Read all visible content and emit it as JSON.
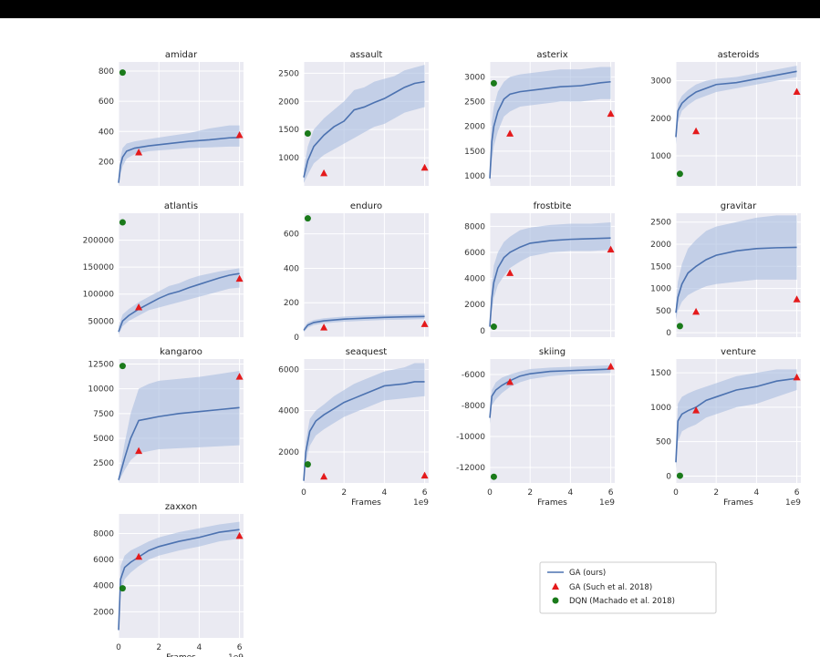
{
  "colors": {
    "ga_ours": "#4c72b0",
    "ga_band": "#a8bde0",
    "ga_such": "#e41a1c",
    "dqn": "#1a7a1a",
    "panel_bg": "#eaeaf2",
    "grid": "#ffffff"
  },
  "legend": {
    "placement": "bottom-right",
    "entries": [
      "GA (ours)",
      "GA (Such et al. 2018)",
      "DQN (Machado et al. 2018)"
    ]
  },
  "shared_xlabel": "Frames",
  "x_exponent_label": "1e9",
  "x_ticks": [
    0,
    2,
    4,
    6
  ],
  "chart_data": [
    {
      "type": "line",
      "title": "amidar",
      "xlim": [
        0,
        6.2
      ],
      "ylim": [
        40,
        860
      ],
      "yticks": [
        200,
        400,
        600,
        800
      ],
      "show_xticks": false,
      "x": [
        0,
        0.1,
        0.2,
        0.4,
        0.8,
        1.5,
        2.5,
        3.5,
        4.5,
        5.5,
        6
      ],
      "ga_ours": [
        60,
        180,
        230,
        270,
        290,
        305,
        320,
        335,
        345,
        358,
        360
      ],
      "band_low": [
        40,
        120,
        170,
        220,
        250,
        270,
        280,
        290,
        295,
        300,
        300
      ],
      "band_high": [
        90,
        230,
        290,
        320,
        335,
        350,
        370,
        390,
        420,
        440,
        440
      ],
      "ga_such": [
        [
          1,
          260
        ],
        [
          6,
          375
        ]
      ],
      "dqn": [
        [
          0.2,
          790
        ]
      ]
    },
    {
      "type": "line",
      "title": "assault",
      "xlim": [
        0,
        6.2
      ],
      "ylim": [
        500,
        2700
      ],
      "yticks": [
        1000,
        1500,
        2000,
        2500
      ],
      "show_xticks": false,
      "x": [
        0,
        0.2,
        0.5,
        1,
        1.5,
        2,
        2.5,
        3,
        3.5,
        4,
        4.5,
        5,
        5.5,
        6
      ],
      "ga_ours": [
        650,
        950,
        1200,
        1400,
        1550,
        1650,
        1850,
        1900,
        1980,
        2050,
        2150,
        2250,
        2320,
        2350
      ],
      "band_low": [
        550,
        700,
        900,
        1050,
        1150,
        1250,
        1350,
        1450,
        1550,
        1600,
        1700,
        1800,
        1850,
        1900
      ],
      "band_high": [
        800,
        1200,
        1500,
        1700,
        1850,
        2000,
        2200,
        2250,
        2350,
        2400,
        2450,
        2550,
        2600,
        2650
      ],
      "ga_such": [
        [
          1,
          720
        ],
        [
          6,
          820
        ]
      ],
      "dqn": [
        [
          0.2,
          1430
        ]
      ]
    },
    {
      "type": "line",
      "title": "asterix",
      "xlim": [
        0,
        6.2
      ],
      "ylim": [
        800,
        3300
      ],
      "yticks": [
        1000,
        1500,
        2000,
        2500,
        3000
      ],
      "show_xticks": false,
      "x": [
        0,
        0.1,
        0.2,
        0.4,
        0.7,
        1,
        1.5,
        2.5,
        3.5,
        4.5,
        5.5,
        6
      ],
      "ga_ours": [
        950,
        1700,
        2000,
        2300,
        2550,
        2650,
        2700,
        2750,
        2800,
        2820,
        2880,
        2900
      ],
      "band_low": [
        850,
        1300,
        1600,
        1900,
        2200,
        2300,
        2400,
        2450,
        2500,
        2500,
        2550,
        2550
      ],
      "band_high": [
        1100,
        2100,
        2400,
        2700,
        2900,
        3000,
        3050,
        3100,
        3150,
        3150,
        3200,
        3200
      ],
      "ga_such": [
        [
          1,
          1850
        ],
        [
          6,
          2250
        ]
      ],
      "dqn": [
        [
          0.2,
          2870
        ]
      ]
    },
    {
      "type": "line",
      "title": "asteroids",
      "xlim": [
        0,
        6.2
      ],
      "ylim": [
        200,
        3500
      ],
      "yticks": [
        1000,
        2000,
        3000
      ],
      "show_xticks": false,
      "x": [
        0,
        0.1,
        0.3,
        0.6,
        1,
        1.5,
        2,
        3,
        4,
        5,
        6
      ],
      "ga_ours": [
        1500,
        2200,
        2400,
        2550,
        2700,
        2800,
        2900,
        2950,
        3050,
        3150,
        3250
      ],
      "band_low": [
        1300,
        1900,
        2200,
        2350,
        2500,
        2600,
        2700,
        2800,
        2900,
        3000,
        3100
      ],
      "band_high": [
        1700,
        2400,
        2600,
        2750,
        2900,
        3000,
        3050,
        3100,
        3200,
        3300,
        3400
      ],
      "ga_such": [
        [
          1,
          1650
        ],
        [
          6,
          2700
        ]
      ],
      "dqn": [
        [
          0.2,
          520
        ]
      ]
    },
    {
      "type": "line",
      "title": "atlantis",
      "xlim": [
        0,
        6.2
      ],
      "ylim": [
        20000,
        250000
      ],
      "yticks": [
        50000,
        100000,
        150000,
        200000
      ],
      "show_xticks": false,
      "x": [
        0,
        0.2,
        0.5,
        1,
        1.5,
        2,
        2.5,
        3,
        3.5,
        4,
        4.5,
        5,
        5.5,
        6
      ],
      "ga_ours": [
        30000,
        50000,
        60000,
        72000,
        82000,
        92000,
        100000,
        105000,
        112000,
        118000,
        124000,
        130000,
        135000,
        138000
      ],
      "band_low": [
        25000,
        40000,
        50000,
        60000,
        70000,
        75000,
        80000,
        85000,
        90000,
        95000,
        100000,
        105000,
        110000,
        112000
      ],
      "band_high": [
        40000,
        62000,
        72000,
        85000,
        95000,
        105000,
        115000,
        120000,
        128000,
        134000,
        138000,
        142000,
        145000,
        148000
      ],
      "ga_such": [
        [
          1,
          75000
        ],
        [
          6,
          128000
        ]
      ],
      "dqn": [
        [
          0.2,
          233000
        ]
      ]
    },
    {
      "type": "line",
      "title": "enduro",
      "xlim": [
        0,
        6.2
      ],
      "ylim": [
        0,
        720
      ],
      "yticks": [
        0,
        200,
        400,
        600
      ],
      "show_xticks": false,
      "x": [
        0,
        0.2,
        0.5,
        1,
        2,
        3,
        4,
        5,
        6
      ],
      "ga_ours": [
        40,
        70,
        85,
        95,
        105,
        110,
        115,
        118,
        120
      ],
      "band_low": [
        30,
        55,
        70,
        80,
        90,
        95,
        100,
        102,
        105
      ],
      "band_high": [
        55,
        85,
        100,
        110,
        120,
        125,
        130,
        132,
        135
      ],
      "ga_such": [
        [
          1,
          55
        ],
        [
          6,
          75
        ]
      ],
      "dqn": [
        [
          0.2,
          690
        ]
      ]
    },
    {
      "type": "line",
      "title": "frostbite",
      "xlim": [
        0,
        6.2
      ],
      "ylim": [
        -500,
        9000
      ],
      "yticks": [
        0,
        2000,
        4000,
        6000,
        8000
      ],
      "show_xticks": false,
      "x": [
        0,
        0.1,
        0.2,
        0.4,
        0.7,
        1,
        1.5,
        2,
        3,
        4,
        5,
        6
      ],
      "ga_ours": [
        300,
        2500,
        3700,
        4800,
        5600,
        6000,
        6400,
        6700,
        6900,
        7000,
        7050,
        7100
      ],
      "band_low": [
        200,
        1500,
        2500,
        3500,
        4200,
        4800,
        5300,
        5700,
        6000,
        6100,
        6100,
        6200
      ],
      "band_high": [
        500,
        3500,
        5000,
        6000,
        6800,
        7200,
        7700,
        7900,
        8100,
        8200,
        8200,
        8300
      ],
      "ga_such": [
        [
          1,
          4400
        ],
        [
          6,
          6200
        ]
      ],
      "dqn": [
        [
          0.2,
          300
        ]
      ]
    },
    {
      "type": "line",
      "title": "gravitar",
      "xlim": [
        0,
        6.2
      ],
      "ylim": [
        -100,
        2700
      ],
      "yticks": [
        0,
        500,
        1000,
        1500,
        2000,
        2500
      ],
      "show_xticks": false,
      "x": [
        0,
        0.1,
        0.3,
        0.6,
        1,
        1.5,
        2,
        3,
        4,
        5,
        6
      ],
      "ga_ours": [
        450,
        800,
        1100,
        1350,
        1500,
        1650,
        1750,
        1850,
        1900,
        1920,
        1930
      ],
      "band_low": [
        300,
        500,
        700,
        850,
        950,
        1050,
        1100,
        1150,
        1200,
        1200,
        1200
      ],
      "band_high": [
        650,
        1150,
        1550,
        1900,
        2100,
        2300,
        2400,
        2500,
        2600,
        2650,
        2650
      ],
      "ga_such": [
        [
          1,
          470
        ],
        [
          6,
          750
        ]
      ],
      "dqn": [
        [
          0.2,
          150
        ]
      ]
    },
    {
      "type": "line",
      "title": "kangaroo",
      "xlim": [
        0,
        6.2
      ],
      "ylim": [
        500,
        13000
      ],
      "yticks": [
        2500,
        5000,
        7500,
        10000,
        12500
      ],
      "show_xticks": false,
      "x": [
        0,
        0.3,
        0.6,
        1,
        1.5,
        2,
        3,
        4,
        5,
        6
      ],
      "ga_ours": [
        800,
        3000,
        5000,
        6800,
        7000,
        7200,
        7500,
        7700,
        7900,
        8100
      ],
      "band_low": [
        600,
        1800,
        2800,
        3500,
        3700,
        3900,
        4000,
        4100,
        4200,
        4300
      ],
      "band_high": [
        1000,
        4500,
        7500,
        10000,
        10500,
        10800,
        11000,
        11200,
        11500,
        11800
      ],
      "ga_such": [
        [
          1,
          3700
        ],
        [
          6,
          11200
        ]
      ],
      "dqn": [
        [
          0.2,
          12300
        ]
      ]
    },
    {
      "type": "line",
      "title": "seaquest",
      "xlim": [
        0,
        6.2
      ],
      "ylim": [
        500,
        6500
      ],
      "yticks": [
        2000,
        4000,
        6000
      ],
      "show_xticks": true,
      "x": [
        0,
        0.1,
        0.3,
        0.6,
        1,
        1.5,
        2,
        2.5,
        3,
        3.5,
        4,
        4.5,
        5,
        5.5,
        6
      ],
      "ga_ours": [
        600,
        2000,
        3000,
        3500,
        3800,
        4100,
        4400,
        4600,
        4800,
        5000,
        5200,
        5250,
        5300,
        5400,
        5400
      ],
      "band_low": [
        500,
        1500,
        2300,
        2800,
        3100,
        3400,
        3700,
        3900,
        4100,
        4300,
        4500,
        4550,
        4600,
        4650,
        4700
      ],
      "band_high": [
        700,
        2500,
        3600,
        4000,
        4300,
        4700,
        5000,
        5300,
        5500,
        5700,
        5900,
        6000,
        6100,
        6300,
        6300
      ],
      "ga_such": [
        [
          1,
          800
        ],
        [
          6,
          850
        ]
      ],
      "dqn": [
        [
          0.2,
          1400
        ]
      ]
    },
    {
      "type": "line",
      "title": "skiing",
      "xlim": [
        0,
        6.2
      ],
      "ylim": [
        -13000,
        -5000
      ],
      "yticks": [
        -12000,
        -10000,
        -8000,
        -6000
      ],
      "show_xticks": true,
      "x": [
        0,
        0.1,
        0.3,
        0.6,
        1,
        1.5,
        2,
        3,
        4,
        5,
        6
      ],
      "ga_ours": [
        -8800,
        -7400,
        -7000,
        -6700,
        -6400,
        -6100,
        -5950,
        -5800,
        -5750,
        -5700,
        -5650
      ],
      "band_low": [
        -9200,
        -8000,
        -7600,
        -7200,
        -6800,
        -6500,
        -6300,
        -6100,
        -6000,
        -5950,
        -5900
      ],
      "band_high": [
        -8400,
        -7000,
        -6500,
        -6200,
        -6000,
        -5800,
        -5650,
        -5550,
        -5500,
        -5450,
        -5400
      ],
      "ga_such": [
        [
          1,
          -6500
        ],
        [
          6,
          -5500
        ]
      ],
      "dqn": [
        [
          0.2,
          -12600
        ]
      ]
    },
    {
      "type": "line",
      "title": "venture",
      "xlim": [
        0,
        6.2
      ],
      "ylim": [
        -100,
        1700
      ],
      "yticks": [
        0,
        500,
        1000,
        1500
      ],
      "show_xticks": true,
      "x": [
        0,
        0.1,
        0.3,
        0.6,
        1,
        1.5,
        2,
        3,
        4,
        5,
        6
      ],
      "ga_ours": [
        200,
        800,
        900,
        950,
        1000,
        1100,
        1150,
        1250,
        1300,
        1380,
        1420
      ],
      "band_low": [
        100,
        500,
        650,
        700,
        750,
        850,
        900,
        1000,
        1050,
        1150,
        1250
      ],
      "band_high": [
        300,
        1050,
        1150,
        1200,
        1250,
        1300,
        1350,
        1450,
        1500,
        1550,
        1550
      ],
      "ga_such": [
        [
          1,
          950
        ],
        [
          6,
          1430
        ]
      ],
      "dqn": [
        [
          0.2,
          5
        ]
      ]
    },
    {
      "type": "line",
      "title": "zaxxon",
      "xlim": [
        0,
        6.2
      ],
      "ylim": [
        0,
        9500
      ],
      "yticks": [
        2000,
        4000,
        6000,
        8000
      ],
      "show_xticks": true,
      "x": [
        0,
        0.1,
        0.3,
        0.6,
        1,
        1.5,
        2,
        3,
        4,
        5,
        6
      ],
      "ga_ours": [
        600,
        4500,
        5400,
        5800,
        6200,
        6700,
        7000,
        7400,
        7700,
        8100,
        8300
      ],
      "band_low": [
        400,
        3500,
        4500,
        5000,
        5500,
        6000,
        6300,
        6700,
        7000,
        7400,
        7600
      ],
      "band_high": [
        800,
        5500,
        6300,
        6700,
        7000,
        7400,
        7700,
        8100,
        8400,
        8700,
        8900
      ],
      "ga_such": [
        [
          1,
          6200
        ],
        [
          6,
          7800
        ]
      ],
      "dqn": [
        [
          0.2,
          3800
        ]
      ]
    }
  ]
}
